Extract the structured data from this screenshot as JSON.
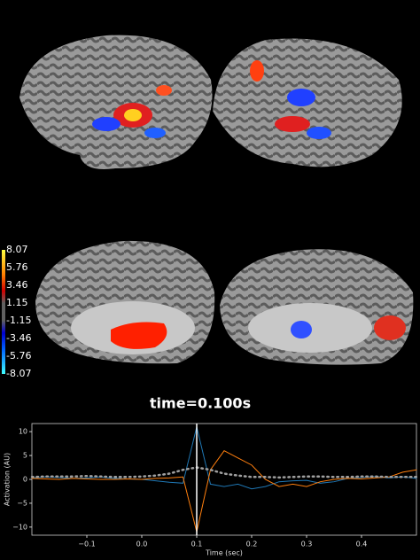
{
  "colorbar": {
    "ticks": [
      8.07,
      5.76,
      3.46,
      1.15,
      -1.15,
      -3.46,
      -5.76,
      -8.07
    ]
  },
  "time_label": "time=0.100s",
  "chart_data": {
    "type": "line",
    "x_label": "Time (sec)",
    "y_label": "Activation (AU)",
    "x": [
      -0.2,
      -0.175,
      -0.15,
      -0.125,
      -0.1,
      -0.075,
      -0.05,
      -0.025,
      0,
      0.025,
      0.05,
      0.075,
      0.1,
      0.125,
      0.15,
      0.175,
      0.2,
      0.225,
      0.25,
      0.275,
      0.3,
      0.325,
      0.35,
      0.375,
      0.4,
      0.425,
      0.45,
      0.475,
      0.5
    ],
    "series": [
      {
        "color": "#1f77b4",
        "values": [
          0.3,
          0.5,
          0.4,
          0.2,
          0.3,
          0.5,
          0.2,
          0.1,
          0,
          -0.3,
          -0.6,
          -0.8,
          11,
          -1,
          -1.5,
          -1,
          -2,
          -1.5,
          -0.5,
          -0.3,
          -0.2,
          -0.8,
          -0.5,
          0.2,
          0.4,
          0.6,
          0.3,
          0.5,
          0.2
        ]
      },
      {
        "color": "#ff7f0e",
        "values": [
          0.2,
          0.1,
          0,
          0.2,
          0.1,
          0,
          0,
          0.1,
          0,
          0.2,
          0.3,
          0.5,
          -11,
          2,
          6,
          4.5,
          3,
          0,
          -1.5,
          -1,
          -1.5,
          -0.5,
          0,
          0.2,
          0.1,
          0.3,
          0.5,
          1.5,
          2
        ]
      },
      {
        "color": "#a0a0a0",
        "dashed": true,
        "values": [
          0.5,
          0.6,
          0.6,
          0.6,
          0.7,
          0.6,
          0.5,
          0.5,
          0.6,
          0.8,
          1.2,
          2,
          2.5,
          2,
          1.2,
          0.8,
          0.5,
          0.5,
          0.4,
          0.5,
          0.6,
          0.6,
          0.5,
          0.5,
          0.6,
          0.6,
          0.5,
          0.5,
          0.5
        ]
      }
    ],
    "vline": 0.1,
    "xlim": [
      -0.2,
      0.5
    ],
    "ylim": [
      -11.7,
      11.7
    ],
    "xticks": [
      {
        "value": -0.1,
        "label": "−0.1"
      },
      {
        "value": 0,
        "label": "0.0"
      },
      0.1,
      0.2,
      0.3,
      0.4
    ],
    "yticks": [
      {
        "value": -10,
        "label": "−10"
      },
      {
        "value": -5,
        "label": "−5"
      },
      0,
      5,
      10
    ]
  }
}
